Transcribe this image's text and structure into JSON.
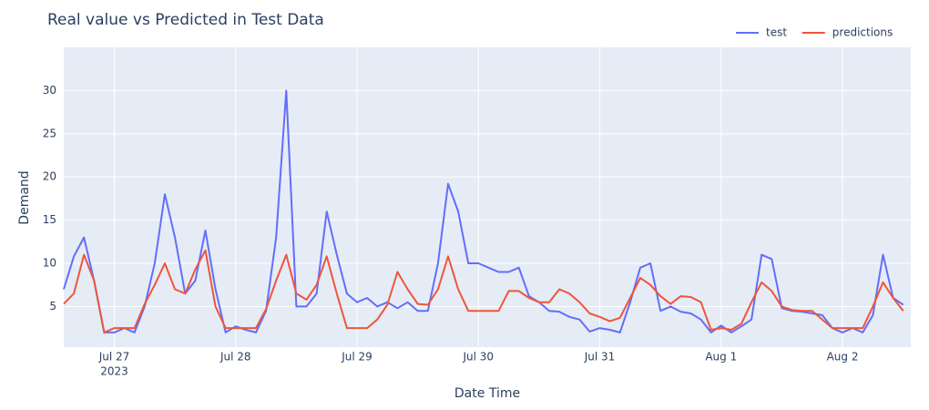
{
  "chart_data": {
    "type": "line",
    "title": "Real value vs Predicted in Test Data",
    "x_label": "Date Time",
    "y_label": "Demand",
    "x_year": "2023",
    "legend": "top-right",
    "grid": true,
    "x": [
      "2023-07-26 14:00",
      "2023-07-26 16:00",
      "2023-07-26 18:00",
      "2023-07-26 20:00",
      "2023-07-26 22:00",
      "2023-07-27 00:00",
      "2023-07-27 02:00",
      "2023-07-27 04:00",
      "2023-07-27 06:00",
      "2023-07-27 08:00",
      "2023-07-27 10:00",
      "2023-07-27 12:00",
      "2023-07-27 14:00",
      "2023-07-27 16:00",
      "2023-07-27 18:00",
      "2023-07-27 20:00",
      "2023-07-27 22:00",
      "2023-07-28 00:00",
      "2023-07-28 02:00",
      "2023-07-28 04:00",
      "2023-07-28 06:00",
      "2023-07-28 08:00",
      "2023-07-28 10:00",
      "2023-07-28 12:00",
      "2023-07-28 14:00",
      "2023-07-28 16:00",
      "2023-07-28 18:00",
      "2023-07-28 20:00",
      "2023-07-28 22:00",
      "2023-07-29 00:00",
      "2023-07-29 02:00",
      "2023-07-29 04:00",
      "2023-07-29 06:00",
      "2023-07-29 08:00",
      "2023-07-29 10:00",
      "2023-07-29 12:00",
      "2023-07-29 14:00",
      "2023-07-29 16:00",
      "2023-07-29 18:00",
      "2023-07-29 20:00",
      "2023-07-29 22:00",
      "2023-07-30 00:00",
      "2023-07-30 02:00",
      "2023-07-30 04:00",
      "2023-07-30 06:00",
      "2023-07-30 08:00",
      "2023-07-30 10:00",
      "2023-07-30 12:00",
      "2023-07-30 14:00",
      "2023-07-30 16:00",
      "2023-07-30 18:00",
      "2023-07-30 20:00",
      "2023-07-30 22:00",
      "2023-07-31 00:00",
      "2023-07-31 02:00",
      "2023-07-31 04:00",
      "2023-07-31 06:00",
      "2023-07-31 08:00",
      "2023-07-31 10:00",
      "2023-07-31 12:00",
      "2023-07-31 14:00",
      "2023-07-31 16:00",
      "2023-07-31 18:00",
      "2023-07-31 20:00",
      "2023-07-31 22:00",
      "2023-08-01 00:00",
      "2023-08-01 02:00",
      "2023-08-01 04:00",
      "2023-08-01 06:00",
      "2023-08-01 08:00",
      "2023-08-01 10:00",
      "2023-08-01 12:00",
      "2023-08-01 14:00",
      "2023-08-01 16:00",
      "2023-08-01 18:00",
      "2023-08-01 20:00",
      "2023-08-01 22:00",
      "2023-08-02 00:00",
      "2023-08-02 02:00",
      "2023-08-02 04:00",
      "2023-08-02 06:00",
      "2023-08-02 08:00",
      "2023-08-02 10:00",
      "2023-08-02 12:00"
    ],
    "series": [
      {
        "name": "test",
        "color": "#636efa",
        "values": [
          7,
          10.8,
          13,
          8,
          2,
          2,
          2.5,
          2,
          5,
          10,
          18,
          13,
          6.5,
          8,
          13.8,
          7,
          2,
          2.7,
          2.3,
          2,
          4.5,
          13,
          30,
          5,
          5,
          6.5,
          16,
          11,
          6.5,
          5.5,
          6,
          5,
          5.5,
          4.8,
          5.5,
          4.5,
          4.5,
          10,
          19.2,
          16,
          10,
          10,
          9.5,
          9,
          9,
          9.5,
          6.2,
          5.5,
          4.5,
          4.4,
          3.8,
          3.5,
          2.1,
          2.5,
          2.3,
          2,
          5.5,
          9.5,
          10,
          4.5,
          5,
          4.4,
          4.2,
          3.5,
          2,
          2.8,
          2,
          2.7,
          3.5,
          11,
          10.5,
          4.8,
          4.5,
          4.4,
          4.2,
          4,
          2.5,
          2,
          2.5,
          2,
          4,
          11,
          6,
          5.2
        ]
      },
      {
        "name": "predictions",
        "color": "#ef553b",
        "values": [
          5.3,
          6.5,
          11,
          8,
          2,
          2.5,
          2.5,
          2.5,
          5.3,
          7.5,
          10,
          7,
          6.5,
          9.3,
          11.5,
          5,
          2.5,
          2.5,
          2.5,
          2.5,
          4.7,
          8,
          11,
          6.5,
          5.8,
          7.5,
          10.8,
          6.5,
          2.5,
          2.5,
          2.5,
          3.5,
          5.2,
          9,
          7,
          5.3,
          5.2,
          7,
          10.8,
          7,
          4.5,
          4.5,
          4.5,
          4.5,
          6.8,
          6.8,
          6,
          5.5,
          5.5,
          7,
          6.5,
          5.5,
          4.2,
          3.8,
          3.3,
          3.7,
          6,
          8.3,
          7.5,
          6.2,
          5.3,
          6.2,
          6.1,
          5.5,
          2.3,
          2.5,
          2.3,
          3,
          5.5,
          7.8,
          6.8,
          5,
          4.6,
          4.5,
          4.5,
          3.5,
          2.5,
          2.5,
          2.5,
          2.5,
          5,
          7.8,
          6,
          4.5
        ]
      }
    ],
    "xlim": [
      "2023-07-26 14:00",
      "2023-08-02 13:30"
    ],
    "xticks": [
      {
        "value": "2023-07-27 00:00",
        "label": "Jul 27"
      },
      {
        "value": "2023-07-28 00:00",
        "label": "Jul 28"
      },
      {
        "value": "2023-07-29 00:00",
        "label": "Jul 29"
      },
      {
        "value": "2023-07-30 00:00",
        "label": "Jul 30"
      },
      {
        "value": "2023-07-31 00:00",
        "label": "Jul 31"
      },
      {
        "value": "2023-08-01 00:00",
        "label": "Aug 1"
      },
      {
        "value": "2023-08-02 00:00",
        "label": "Aug 2"
      }
    ],
    "ylim": [
      0.3,
      35
    ],
    "yticks": [
      5,
      10,
      15,
      20,
      25,
      30
    ]
  }
}
